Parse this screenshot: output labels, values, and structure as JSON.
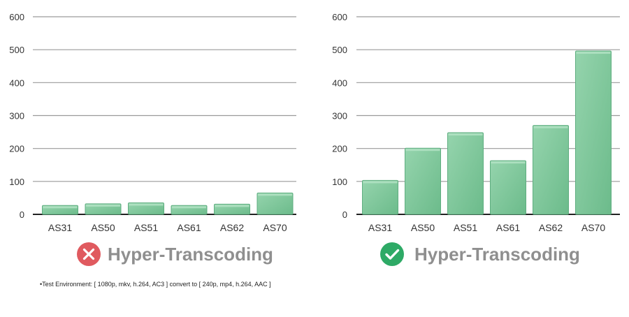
{
  "colors": {
    "bar_top": "#8fd0a8",
    "bar_bottom": "#6cbb8b",
    "bar_stroke": "#5fae80",
    "gridline": "#9a9a9a",
    "baseline": "#222222",
    "fail_icon": "#e05a5f",
    "success_icon": "#2eaa66",
    "title_text": "#8f8f8f"
  },
  "chart_data": [
    {
      "type": "bar",
      "categories": [
        "AS31",
        "AS50",
        "AS51",
        "AS61",
        "AS62",
        "AS70"
      ],
      "values": [
        27,
        32,
        35,
        27,
        31,
        65
      ],
      "ylim": [
        0,
        600
      ],
      "yticks": [
        "0",
        "100",
        "200",
        "300",
        "400",
        "500",
        "600"
      ],
      "grid": true,
      "caption": "Hyper-Transcoding",
      "status_icon": "x-circle-icon"
    },
    {
      "type": "bar",
      "categories": [
        "AS31",
        "AS50",
        "AS51",
        "AS61",
        "AS62",
        "AS70"
      ],
      "values": [
        103,
        201,
        248,
        163,
        270,
        496
      ],
      "ylim": [
        0,
        600
      ],
      "yticks": [
        "0",
        "100",
        "200",
        "300",
        "400",
        "500",
        "600"
      ],
      "grid": true,
      "caption": "Hyper-Transcoding",
      "status_icon": "check-circle-icon"
    }
  ],
  "footnote": "•Test Environment: [ 1080p, mkv, h.264, AC3 ] convert to [ 240p, mp4, h.264, AAC ]"
}
